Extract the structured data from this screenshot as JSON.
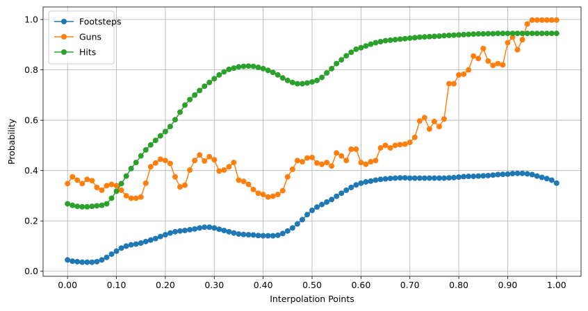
{
  "chart_data": {
    "type": "line",
    "xlabel": "Interpolation Points",
    "ylabel": "Probability",
    "xlim": [
      -0.05,
      1.05
    ],
    "ylim": [
      -0.02,
      1.05
    ],
    "grid": true,
    "legend_position": "top-left",
    "xticks": [
      0.0,
      0.1,
      0.2,
      0.3,
      0.4,
      0.5,
      0.6,
      0.7,
      0.8,
      0.9,
      1.0
    ],
    "xtick_labels": [
      "0.00",
      "0.10",
      "0.20",
      "0.30",
      "0.40",
      "0.50",
      "0.60",
      "0.70",
      "0.80",
      "0.90",
      "1.00"
    ],
    "yticks": [
      0.0,
      0.2,
      0.4,
      0.6,
      0.8,
      1.0
    ],
    "ytick_labels": [
      "0.0",
      "0.2",
      "0.4",
      "0.6",
      "0.8",
      "1.0"
    ],
    "x_count": 101,
    "x_start": 0.0,
    "x_step": 0.01,
    "series": [
      {
        "name": "Footsteps",
        "color": "#1f77b4",
        "values": [
          0.045,
          0.04,
          0.038,
          0.036,
          0.036,
          0.036,
          0.038,
          0.045,
          0.055,
          0.068,
          0.08,
          0.092,
          0.1,
          0.105,
          0.108,
          0.112,
          0.118,
          0.124,
          0.13,
          0.138,
          0.145,
          0.152,
          0.157,
          0.16,
          0.162,
          0.165,
          0.168,
          0.172,
          0.175,
          0.175,
          0.172,
          0.167,
          0.162,
          0.157,
          0.152,
          0.148,
          0.146,
          0.145,
          0.144,
          0.142,
          0.141,
          0.141,
          0.141,
          0.143,
          0.15,
          0.16,
          0.172,
          0.188,
          0.205,
          0.225,
          0.242,
          0.255,
          0.265,
          0.275,
          0.285,
          0.298,
          0.31,
          0.322,
          0.333,
          0.343,
          0.35,
          0.355,
          0.358,
          0.362,
          0.365,
          0.367,
          0.369,
          0.37,
          0.371,
          0.371,
          0.37,
          0.37,
          0.37,
          0.37,
          0.37,
          0.37,
          0.37,
          0.37,
          0.371,
          0.372,
          0.374,
          0.376,
          0.377,
          0.377,
          0.378,
          0.379,
          0.38,
          0.382,
          0.384,
          0.385,
          0.386,
          0.388,
          0.389,
          0.389,
          0.387,
          0.384,
          0.378,
          0.373,
          0.368,
          0.362,
          0.35
        ]
      },
      {
        "name": "Guns",
        "color": "#ff7f0e",
        "values": [
          0.348,
          0.375,
          0.362,
          0.348,
          0.365,
          0.36,
          0.333,
          0.322,
          0.34,
          0.345,
          0.34,
          0.322,
          0.3,
          0.29,
          0.29,
          0.295,
          0.35,
          0.415,
          0.43,
          0.445,
          0.44,
          0.428,
          0.375,
          0.335,
          0.342,
          0.402,
          0.44,
          0.462,
          0.438,
          0.455,
          0.443,
          0.398,
          0.402,
          0.415,
          0.432,
          0.362,
          0.357,
          0.345,
          0.325,
          0.31,
          0.305,
          0.295,
          0.298,
          0.305,
          0.32,
          0.375,
          0.405,
          0.44,
          0.435,
          0.45,
          0.452,
          0.43,
          0.425,
          0.432,
          0.418,
          0.47,
          0.458,
          0.44,
          0.485,
          0.485,
          0.432,
          0.425,
          0.435,
          0.44,
          0.49,
          0.5,
          0.49,
          0.5,
          0.503,
          0.505,
          0.512,
          0.532,
          0.597,
          0.61,
          0.565,
          0.595,
          0.575,
          0.605,
          0.745,
          0.745,
          0.78,
          0.783,
          0.8,
          0.855,
          0.845,
          0.885,
          0.835,
          0.818,
          0.825,
          0.82,
          0.908,
          0.93,
          0.88,
          0.92,
          0.982,
          0.998,
          0.998,
          0.998,
          0.998,
          0.998,
          0.998
        ]
      },
      {
        "name": "Hits",
        "color": "#2ca02c",
        "values": [
          0.268,
          0.262,
          0.258,
          0.256,
          0.256,
          0.258,
          0.26,
          0.262,
          0.268,
          0.29,
          0.318,
          0.348,
          0.378,
          0.408,
          0.432,
          0.458,
          0.482,
          0.502,
          0.52,
          0.538,
          0.555,
          0.575,
          0.602,
          0.632,
          0.66,
          0.682,
          0.7,
          0.718,
          0.735,
          0.75,
          0.765,
          0.78,
          0.792,
          0.802,
          0.807,
          0.812,
          0.814,
          0.815,
          0.814,
          0.81,
          0.805,
          0.798,
          0.79,
          0.78,
          0.768,
          0.758,
          0.75,
          0.745,
          0.745,
          0.748,
          0.752,
          0.758,
          0.77,
          0.788,
          0.805,
          0.825,
          0.84,
          0.856,
          0.87,
          0.882,
          0.888,
          0.895,
          0.902,
          0.908,
          0.912,
          0.916,
          0.918,
          0.92,
          0.922,
          0.924,
          0.926,
          0.928,
          0.93,
          0.931,
          0.932,
          0.933,
          0.934,
          0.936,
          0.937,
          0.938,
          0.939,
          0.94,
          0.941,
          0.942,
          0.943,
          0.943,
          0.944,
          0.944,
          0.945,
          0.945,
          0.945,
          0.945,
          0.945,
          0.945,
          0.945,
          0.945,
          0.945,
          0.945,
          0.945,
          0.945,
          0.945
        ]
      }
    ]
  }
}
